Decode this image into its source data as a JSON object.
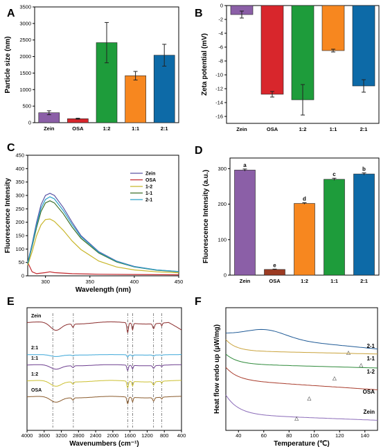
{
  "panels": {
    "A": {
      "label": "A"
    },
    "B": {
      "label": "B"
    },
    "C": {
      "label": "C"
    },
    "D": {
      "label": "D"
    },
    "E": {
      "label": "E"
    },
    "F": {
      "label": "F"
    }
  },
  "colors": {
    "zein": "#8b5fa7",
    "osa": "#d8262c",
    "r12": "#1e9c3b",
    "r11": "#f7871f",
    "r21": "#0d6aa7",
    "osa_d": "#9c3b22",
    "c_zein": "#5a55a5",
    "c_osa": "#c2262c",
    "c_12": "#c8b62a",
    "c_11": "#3d6f2a",
    "c_21": "#2aa0c8"
  },
  "chart_data": [
    {
      "id": "A",
      "type": "bar",
      "categories": [
        "Zein",
        "OSA",
        "1:2",
        "1:1",
        "2:1"
      ],
      "values": [
        300,
        120,
        2420,
        1420,
        2040
      ],
      "errors": [
        60,
        15,
        610,
        130,
        330
      ],
      "ylabel": "Particle size (nm)",
      "ylim": [
        0,
        3500
      ],
      "yticks": [
        0,
        500,
        1000,
        1500,
        2000,
        2500,
        3000,
        3500
      ]
    },
    {
      "id": "B",
      "type": "bar",
      "categories": [
        "Zein",
        "OSA",
        "1:2",
        "1:1",
        "2:1"
      ],
      "values": [
        -1.3,
        -12.8,
        -13.6,
        -6.5,
        -11.6
      ],
      "errors": [
        0.5,
        0.4,
        2.2,
        0.2,
        0.9
      ],
      "ylabel": "Zeta potential (mV)",
      "ylim": [
        -17,
        0
      ],
      "yticks": [
        0,
        -2,
        -4,
        -6,
        -8,
        -10,
        -12,
        -14,
        -16
      ]
    },
    {
      "id": "C",
      "type": "line",
      "xlabel": "Wavelength (nm)",
      "ylabel": "Fluorescence Intensity",
      "xlim": [
        280,
        450
      ],
      "ylim": [
        0,
        450
      ],
      "xticks": [
        300,
        350,
        400,
        450
      ],
      "yticks": [
        0,
        50,
        100,
        150,
        200,
        250,
        300,
        350,
        400,
        450
      ],
      "legend": [
        "Zein",
        "OSA",
        "1-2",
        "1-1",
        "2-1"
      ],
      "series": [
        {
          "name": "Zein",
          "x": [
            280,
            285,
            290,
            295,
            300,
            305,
            310,
            320,
            330,
            340,
            360,
            380,
            400,
            425,
            450
          ],
          "y": [
            50,
            120,
            200,
            265,
            300,
            308,
            300,
            255,
            200,
            150,
            90,
            55,
            35,
            22,
            16
          ]
        },
        {
          "name": "OSA",
          "x": [
            280,
            285,
            290,
            300,
            305,
            310,
            330,
            360,
            400,
            450
          ],
          "y": [
            50,
            15,
            8,
            12,
            15,
            12,
            8,
            6,
            5,
            4
          ]
        },
        {
          "name": "1-2",
          "x": [
            280,
            285,
            290,
            295,
            300,
            305,
            310,
            320,
            330,
            340,
            360,
            380,
            400,
            425,
            450
          ],
          "y": [
            40,
            90,
            150,
            190,
            210,
            212,
            203,
            170,
            130,
            98,
            55,
            33,
            22,
            15,
            11
          ]
        },
        {
          "name": "1-1",
          "x": [
            280,
            285,
            290,
            295,
            300,
            305,
            310,
            320,
            330,
            340,
            360,
            380,
            400,
            425,
            450
          ],
          "y": [
            45,
            110,
            180,
            240,
            272,
            280,
            272,
            232,
            182,
            140,
            85,
            52,
            33,
            21,
            15
          ]
        },
        {
          "name": "2-1",
          "x": [
            280,
            285,
            290,
            295,
            300,
            305,
            310,
            320,
            330,
            340,
            360,
            380,
            400,
            425,
            450
          ],
          "y": [
            48,
            115,
            190,
            252,
            285,
            295,
            287,
            244,
            192,
            146,
            88,
            54,
            34,
            22,
            16
          ]
        }
      ]
    },
    {
      "id": "D",
      "type": "bar",
      "categories": [
        "Zein",
        "OSA",
        "1:2",
        "1:1",
        "2:1"
      ],
      "values": [
        296,
        16,
        202,
        270,
        285
      ],
      "errors": [
        3,
        1,
        2,
        3,
        3
      ],
      "letters": [
        "a",
        "e",
        "d",
        "c",
        "b"
      ],
      "ylabel": "Fluorescence Intensity (a.u.)",
      "ylim": [
        0,
        330
      ],
      "yticks": [
        0,
        100,
        200,
        300
      ]
    },
    {
      "id": "E",
      "type": "line",
      "xlabel": "Wavenumbers (cm⁻¹)",
      "xlim": [
        4000,
        400
      ],
      "xticks": [
        4000,
        3600,
        3200,
        2800,
        2400,
        2000,
        1600,
        1200,
        800,
        400
      ],
      "vlines": [
        3400,
        2920,
        1655,
        1540,
        1050,
        860
      ],
      "series": [
        {
          "name": "Zein"
        },
        {
          "name": "2:1"
        },
        {
          "name": "1:1"
        },
        {
          "name": "1:2"
        },
        {
          "name": "OSA"
        }
      ]
    },
    {
      "id": "F",
      "type": "line",
      "xlabel": "Temperature (℃)",
      "ylabel": "Heat flow endo up (μW/mg)",
      "xlim": [
        30,
        150
      ],
      "xticks": [
        40,
        60,
        80,
        100,
        120,
        140
      ],
      "series": [
        {
          "name": "2-1",
          "peak_x": 127
        },
        {
          "name": "1-1",
          "peak_x": 137
        },
        {
          "name": "1-2",
          "peak_x": 116
        },
        {
          "name": "OSA",
          "peak_x": 96
        },
        {
          "name": "Zein",
          "peak_x": 86
        }
      ]
    }
  ]
}
